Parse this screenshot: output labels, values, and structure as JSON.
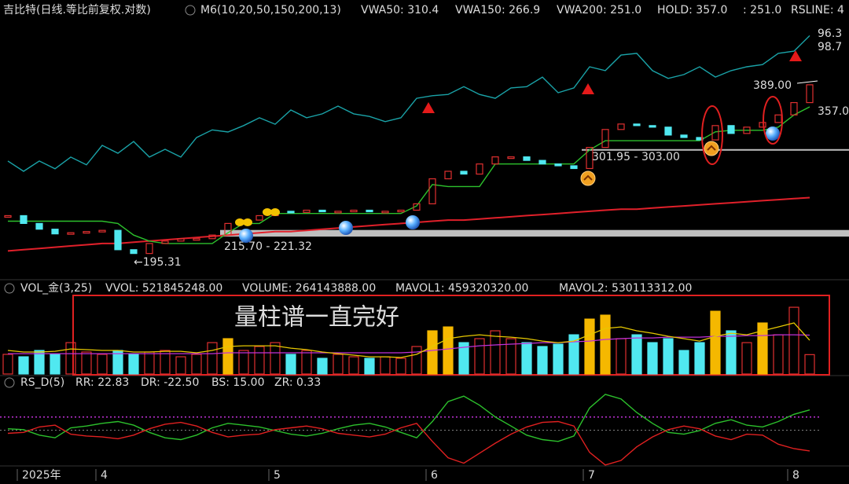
{
  "header": {
    "title": "吉比特(日线.等比前复权.对数)",
    "indicators": [
      "M6(10,20,50,150,200,13)",
      "VWA50: 310.4",
      "VWA150: 266.9",
      "VWA200: 251.0",
      "HOLD: 357.0",
      ": 251.0",
      "RSLINE: 4"
    ]
  },
  "annotation": "量柱谱一直完好",
  "chart_data": [
    {
      "type": "candlestick",
      "log": true,
      "ylim": [
        183,
        501
      ],
      "y2lim": [
        40,
        100
      ],
      "up_color": "#e03030",
      "down_color": "#50e8f0",
      "close": [
        234,
        227,
        222,
        218,
        219,
        220,
        221,
        205,
        202,
        210,
        212,
        214,
        214,
        217,
        227,
        230,
        234,
        238,
        237,
        239,
        238,
        238,
        239,
        238,
        238,
        239,
        245,
        270,
        278,
        275,
        286,
        294,
        294,
        290,
        286,
        284,
        281,
        305,
        327,
        334,
        332,
        330,
        320,
        317,
        314,
        332,
        322,
        330,
        336,
        346,
        363,
        389
      ],
      "hold": {
        "color": "#2cc02c",
        "values": [
          229,
          229,
          229,
          229,
          229,
          229,
          229,
          227,
          217,
          212,
          210,
          210,
          210,
          210,
          219,
          227,
          227,
          236,
          236,
          236,
          236,
          236,
          236,
          236,
          236,
          236,
          243,
          264,
          262,
          262,
          262,
          286,
          286,
          286,
          286,
          286,
          286,
          302,
          313,
          313,
          313,
          313,
          313,
          313,
          313,
          324,
          326,
          326,
          326,
          330,
          346,
          357
        ]
      },
      "vwa200": {
        "color": "#e0202a",
        "values": [
          204,
          205,
          206,
          207,
          208,
          209,
          210,
          210,
          211,
          212,
          213,
          214,
          215,
          216,
          217,
          218,
          219,
          220,
          220,
          221,
          222,
          223,
          224,
          225,
          226,
          227,
          228,
          229,
          230,
          230,
          231,
          232,
          233,
          234,
          235,
          236,
          237,
          238,
          239,
          240,
          240,
          241,
          242,
          243,
          244,
          245,
          246,
          247,
          248,
          249,
          250,
          251
        ]
      },
      "rsline": {
        "color": "#1aa3a8",
        "axis": "y2",
        "values": [
          67.3,
          64.9,
          67.3,
          65.5,
          68.2,
          66.4,
          70.9,
          69.1,
          71.8,
          68.2,
          70.0,
          68.2,
          72.7,
          74.5,
          74.0,
          75.5,
          77.3,
          75.8,
          79.1,
          77.3,
          78.2,
          80.0,
          78.2,
          77.6,
          76.4,
          77.3,
          81.8,
          82.4,
          82.7,
          84.5,
          82.7,
          81.8,
          84.2,
          84.5,
          86.7,
          83.1,
          84.2,
          89.1,
          88.2,
          91.8,
          92.2,
          88.2,
          86.4,
          87.3,
          89.1,
          86.7,
          88.2,
          89.1,
          89.6,
          92.2,
          92.7,
          96.3
        ]
      },
      "zones": [
        {
          "label": "215.70 - 221.32",
          "low": 215.7,
          "high": 221.32,
          "from": 14
        },
        {
          "label": "301.95 - 303.00",
          "low": 301.95,
          "high": 303.0,
          "from": 37
        }
      ],
      "labels": {
        "rs_end": "96.3",
        "rs_high": "98.7",
        "hold_end": "357.0",
        "high": "389.00",
        "low": "←195.31"
      }
    },
    {
      "type": "bar",
      "title": "VOL_金(3,25)",
      "texts": [
        "VVOL: 521845248.00",
        "VOLUME: 264143888.00",
        "MAVOL1: 459320320.00",
        "MAVOL2: 530113312.00"
      ],
      "ylim": [
        0,
        1050000000
      ],
      "highlight": [
        14,
        27,
        28,
        37,
        38,
        45,
        48
      ],
      "highlight_color": "#f5b800",
      "values": [
        268000000,
        235000000,
        321000000,
        268000000,
        428000000,
        300000000,
        268000000,
        321000000,
        278000000,
        300000000,
        321000000,
        235000000,
        268000000,
        428000000,
        482000000,
        321000000,
        375000000,
        428000000,
        268000000,
        321000000,
        214000000,
        268000000,
        235000000,
        214000000,
        235000000,
        214000000,
        375000000,
        589000000,
        642000000,
        428000000,
        482000000,
        589000000,
        482000000,
        428000000,
        375000000,
        407000000,
        535000000,
        749000000,
        803000000,
        482000000,
        535000000,
        428000000,
        482000000,
        321000000,
        428000000,
        856000000,
        589000000,
        428000000,
        696000000,
        535000000,
        910000000,
        264143888
      ],
      "mavol1": {
        "color": "#e6c800",
        "values": [
          321000000,
          300000000,
          300000000,
          310000000,
          342000000,
          332000000,
          321000000,
          321000000,
          300000000,
          300000000,
          310000000,
          310000000,
          289000000,
          321000000,
          375000000,
          385000000,
          385000000,
          385000000,
          353000000,
          332000000,
          300000000,
          278000000,
          257000000,
          235000000,
          235000000,
          225000000,
          268000000,
          375000000,
          482000000,
          514000000,
          535000000,
          514000000,
          503000000,
          482000000,
          449000000,
          428000000,
          449000000,
          535000000,
          621000000,
          642000000,
          589000000,
          556000000,
          514000000,
          482000000,
          449000000,
          514000000,
          556000000,
          535000000,
          589000000,
          642000000,
          696000000,
          459320320
        ]
      },
      "mavol2": {
        "color": "#c030d8",
        "values": [
          278000000,
          278000000,
          278000000,
          278000000,
          278000000,
          278000000,
          278000000,
          278000000,
          278000000,
          278000000,
          278000000,
          278000000,
          278000000,
          278000000,
          289000000,
          289000000,
          289000000,
          289000000,
          289000000,
          289000000,
          289000000,
          289000000,
          289000000,
          289000000,
          289000000,
          289000000,
          300000000,
          321000000,
          342000000,
          364000000,
          385000000,
          396000000,
          407000000,
          417000000,
          428000000,
          428000000,
          439000000,
          449000000,
          471000000,
          482000000,
          492000000,
          492000000,
          503000000,
          503000000,
          503000000,
          514000000,
          514000000,
          524000000,
          524000000,
          535000000,
          535000000,
          530113312
        ]
      }
    },
    {
      "type": "line",
      "title": "RS_D(5)",
      "texts": [
        "RR: 22.83",
        "DR: -22.50",
        "BS: 15.00",
        "ZR: 0.33"
      ],
      "ylim": [
        -46,
        46
      ],
      "bs": 15,
      "zr": 0.33,
      "categories": [
        null,
        "2025年",
        null,
        null,
        null,
        null,
        "4",
        null,
        null,
        null,
        null,
        null,
        null,
        null,
        null,
        null,
        null,
        "5",
        null,
        null,
        null,
        null,
        null,
        null,
        null,
        null,
        null,
        "6",
        null,
        null,
        null,
        null,
        null,
        null,
        null,
        null,
        null,
        "7",
        null,
        null,
        null,
        null,
        null,
        null,
        null,
        null,
        null,
        null,
        null,
        null,
        "8",
        null
      ],
      "series": [
        {
          "color": "#2cc02c",
          "values": [
            2,
            1,
            -5,
            -8,
            3,
            5,
            8,
            10,
            6,
            -2,
            -8,
            -10,
            -5,
            3,
            8,
            6,
            4,
            0,
            -4,
            -6,
            -3,
            2,
            6,
            8,
            4,
            -2,
            -8,
            10,
            32,
            38,
            28,
            15,
            5,
            -5,
            -10,
            -12,
            -6,
            25,
            40,
            35,
            20,
            8,
            -2,
            -4,
            0,
            8,
            12,
            6,
            4,
            10,
            18,
            22.83
          ]
        },
        {
          "color": "#e02020",
          "values": [
            -3,
            -2,
            4,
            6,
            -4,
            -6,
            -7,
            -9,
            -5,
            2,
            7,
            9,
            5,
            -2,
            -7,
            -5,
            -4,
            1,
            3,
            5,
            2,
            -3,
            -5,
            -7,
            -4,
            3,
            8,
            -12,
            -30,
            -36,
            -25,
            -14,
            -4,
            4,
            9,
            10,
            5,
            -24,
            -38,
            -33,
            -18,
            -7,
            1,
            5,
            2,
            -6,
            -10,
            -4,
            -5,
            -15,
            -20,
            -22.5
          ]
        }
      ]
    }
  ]
}
